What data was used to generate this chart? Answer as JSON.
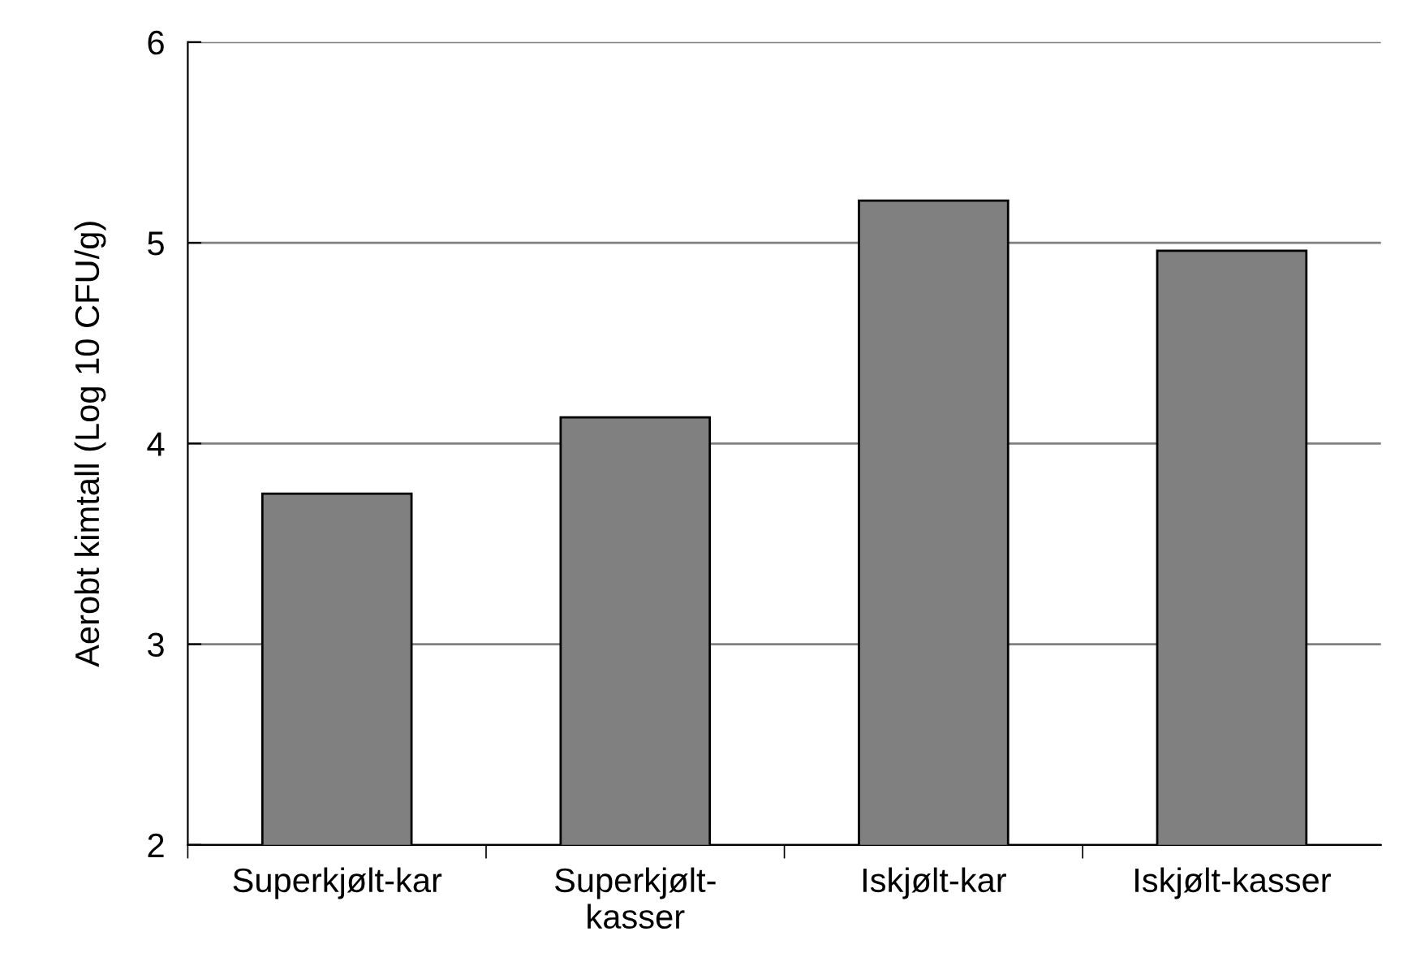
{
  "chart_data": {
    "type": "bar",
    "ylabel": "Aerobt kimtall (Log 10 CFU/g)",
    "categories": [
      "Superkjølt-kar",
      "Superkjølt-kasser",
      "Iskjølt-kar",
      "Iskjølt-kasser"
    ],
    "values": [
      3.75,
      4.13,
      5.21,
      4.96
    ],
    "color": "#808080",
    "ylim": [
      2,
      6
    ],
    "yticks": [
      2,
      3,
      4,
      5,
      6
    ],
    "grid": "y"
  }
}
